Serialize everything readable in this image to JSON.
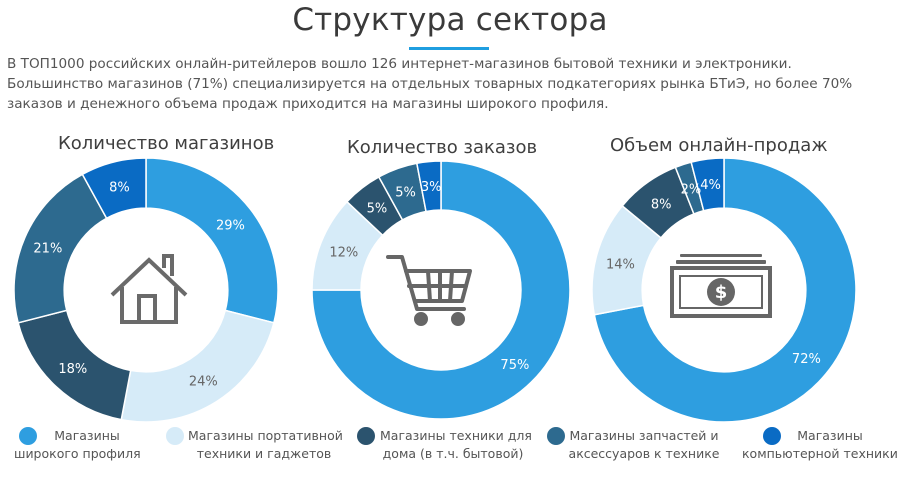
{
  "page": {
    "title": "Структура сектора",
    "intro": [
      "В ТОП1000 российских онлайн-ритейлеров вошло 126 интернет-магазинов бытовой техники и электроники.",
      "Большинство магазинов (71%) специализируется на отдельных товарных подкатегориях рынка БТиЭ, но более 70%",
      "заказов и денежного объема продаж приходится на магазины широкого профиля."
    ],
    "accent_color": "#1f9ee0"
  },
  "legend": [
    {
      "line1": "Магазины",
      "line2": "широкого профиля",
      "color": "#2e9ee0"
    },
    {
      "line1": "Магазины портативной",
      "line2": "техники и гаджетов",
      "color": "#d6ebf8"
    },
    {
      "line1": "Магазины техники для",
      "line2": "дома (в т.ч. бытовой)",
      "color": "#2b536e"
    },
    {
      "line1": "Магазины запчастей и",
      "line2": "аксессуаров к технике",
      "color": "#2d6a8f"
    },
    {
      "line1": "Магазины",
      "line2": "компьютерной техники",
      "color": "#0a6bc4"
    }
  ],
  "icons": [
    "house-icon",
    "shopping-cart-icon",
    "banknote-icon"
  ],
  "chart_data": [
    {
      "type": "pie",
      "title": "Количество магазинов",
      "categories": [
        "Магазины широкого профиля",
        "Магазины портативной техники и гаджетов",
        "Магазины техники для дома (в т.ч. бытовой)",
        "Магазины запчастей и аксессуаров к технике",
        "Магазины компьютерной техники"
      ],
      "values": [
        29,
        24,
        18,
        21,
        8
      ],
      "labels": [
        "29%",
        "24%",
        "18%",
        "21%",
        "8%"
      ],
      "colors": [
        "#2e9ee0",
        "#d6ebf8",
        "#2b536e",
        "#2d6a8f",
        "#0a6bc4"
      ]
    },
    {
      "type": "pie",
      "title": "Количество заказов",
      "categories": [
        "Магазины широкого профиля",
        "Магазины портативной техники и гаджетов",
        "Магазины техники для дома (в т.ч. бытовой)",
        "Магазины запчастей и аксессуаров к технике",
        "Магазины компьютерной техники"
      ],
      "values": [
        75,
        12,
        5,
        5,
        3
      ],
      "labels": [
        "75%",
        "12%",
        "5%",
        "5%",
        "3%"
      ],
      "colors": [
        "#2e9ee0",
        "#d6ebf8",
        "#2b536e",
        "#2d6a8f",
        "#0a6bc4"
      ]
    },
    {
      "type": "pie",
      "title": "Объем онлайн-продаж",
      "categories": [
        "Магазины широкого профиля",
        "Магазины портативной техники и гаджетов",
        "Магазины техники для дома (в т.ч. бытовой)",
        "Магазины запчастей и аксессуаров к технике",
        "Магазины компьютерной техники"
      ],
      "values": [
        72,
        14,
        8,
        2,
        4
      ],
      "labels": [
        "72%",
        "14%",
        "8%",
        "2%",
        "4%"
      ],
      "colors": [
        "#2e9ee0",
        "#d6ebf8",
        "#2b536e",
        "#2d6a8f",
        "#0a6bc4"
      ]
    }
  ]
}
